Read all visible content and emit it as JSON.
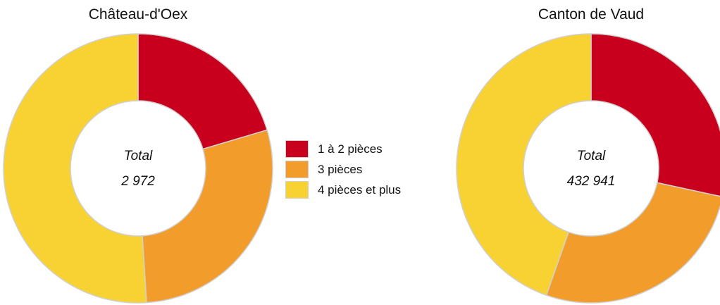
{
  "colors": {
    "c1": "#c8001e",
    "c2": "#f29c2b",
    "c3": "#f8d232",
    "slice_border": "#d0d0d0"
  },
  "legend": [
    {
      "label": "1 à 2 pièces",
      "color": "#c8001e"
    },
    {
      "label": "3 pièces",
      "color": "#f29c2b"
    },
    {
      "label": "4 pièces et plus",
      "color": "#f8d232"
    }
  ],
  "chart_data": [
    {
      "type": "pie",
      "title": "Château-d'Oex",
      "center_label": "Total",
      "center_value": "2 972",
      "categories": [
        "1 à 2 pièces",
        "3 pièces",
        "4 pièces et plus"
      ],
      "values": [
        20.4,
        28.6,
        51.0
      ],
      "unit": "%",
      "donut": true
    },
    {
      "type": "pie",
      "title": "Canton de Vaud",
      "center_label": "Total",
      "center_value": "432 941",
      "categories": [
        "1 à 2 pièces",
        "3 pièces",
        "4 pièces et plus"
      ],
      "values": [
        28.4,
        27.0,
        44.6
      ],
      "unit": "%",
      "donut": true
    }
  ]
}
